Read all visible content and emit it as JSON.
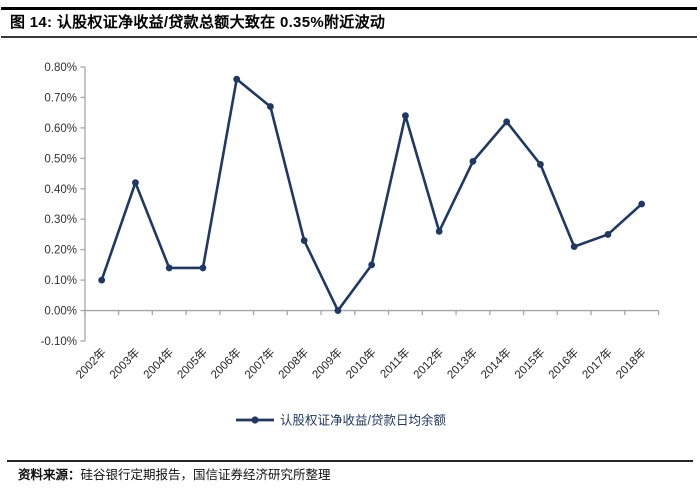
{
  "header": {
    "title": "图 14:  认股权证净收益/贷款总额大致在 0.35%附近波动"
  },
  "chart_data": {
    "type": "line",
    "title": "认股权证净收益/贷款总额大致在 0.35%附近波动",
    "categories": [
      "2002年",
      "2003年",
      "2004年",
      "2005年",
      "2006年",
      "2007年",
      "2008年",
      "2009年",
      "2010年",
      "2011年",
      "2012年",
      "2013年",
      "2014年",
      "2015年",
      "2016年",
      "2017年",
      "2018年"
    ],
    "series": [
      {
        "name": "认股权证净收益/贷款日均余额",
        "values": [
          0.1,
          0.42,
          0.14,
          0.14,
          0.76,
          0.67,
          0.23,
          0.0,
          0.15,
          0.64,
          0.26,
          0.49,
          0.62,
          0.48,
          0.21,
          0.25,
          0.35
        ]
      }
    ],
    "unit": "%",
    "ylim": [
      -0.1,
      0.8
    ],
    "y_tick_values": [
      0.8,
      0.7,
      0.6,
      0.5,
      0.4,
      0.3,
      0.2,
      0.1,
      0.0,
      -0.1
    ],
    "y_tick_labels": [
      "0.80%",
      "0.70%",
      "0.60%",
      "0.50%",
      "0.40%",
      "0.30%",
      "0.20%",
      "0.10%",
      "0.00%",
      "-0.10%"
    ],
    "grid": false,
    "legend_position": "bottom",
    "colors": {
      "line": "#1F3864",
      "marker": "#1F3864",
      "axis": "#A6A6A6",
      "tick_label": "#333333",
      "legend_text": "#1F3864"
    }
  },
  "footer": {
    "source_label": "资料来源：",
    "source_text": "硅谷银行定期报告，国信证券经济研究所整理"
  }
}
